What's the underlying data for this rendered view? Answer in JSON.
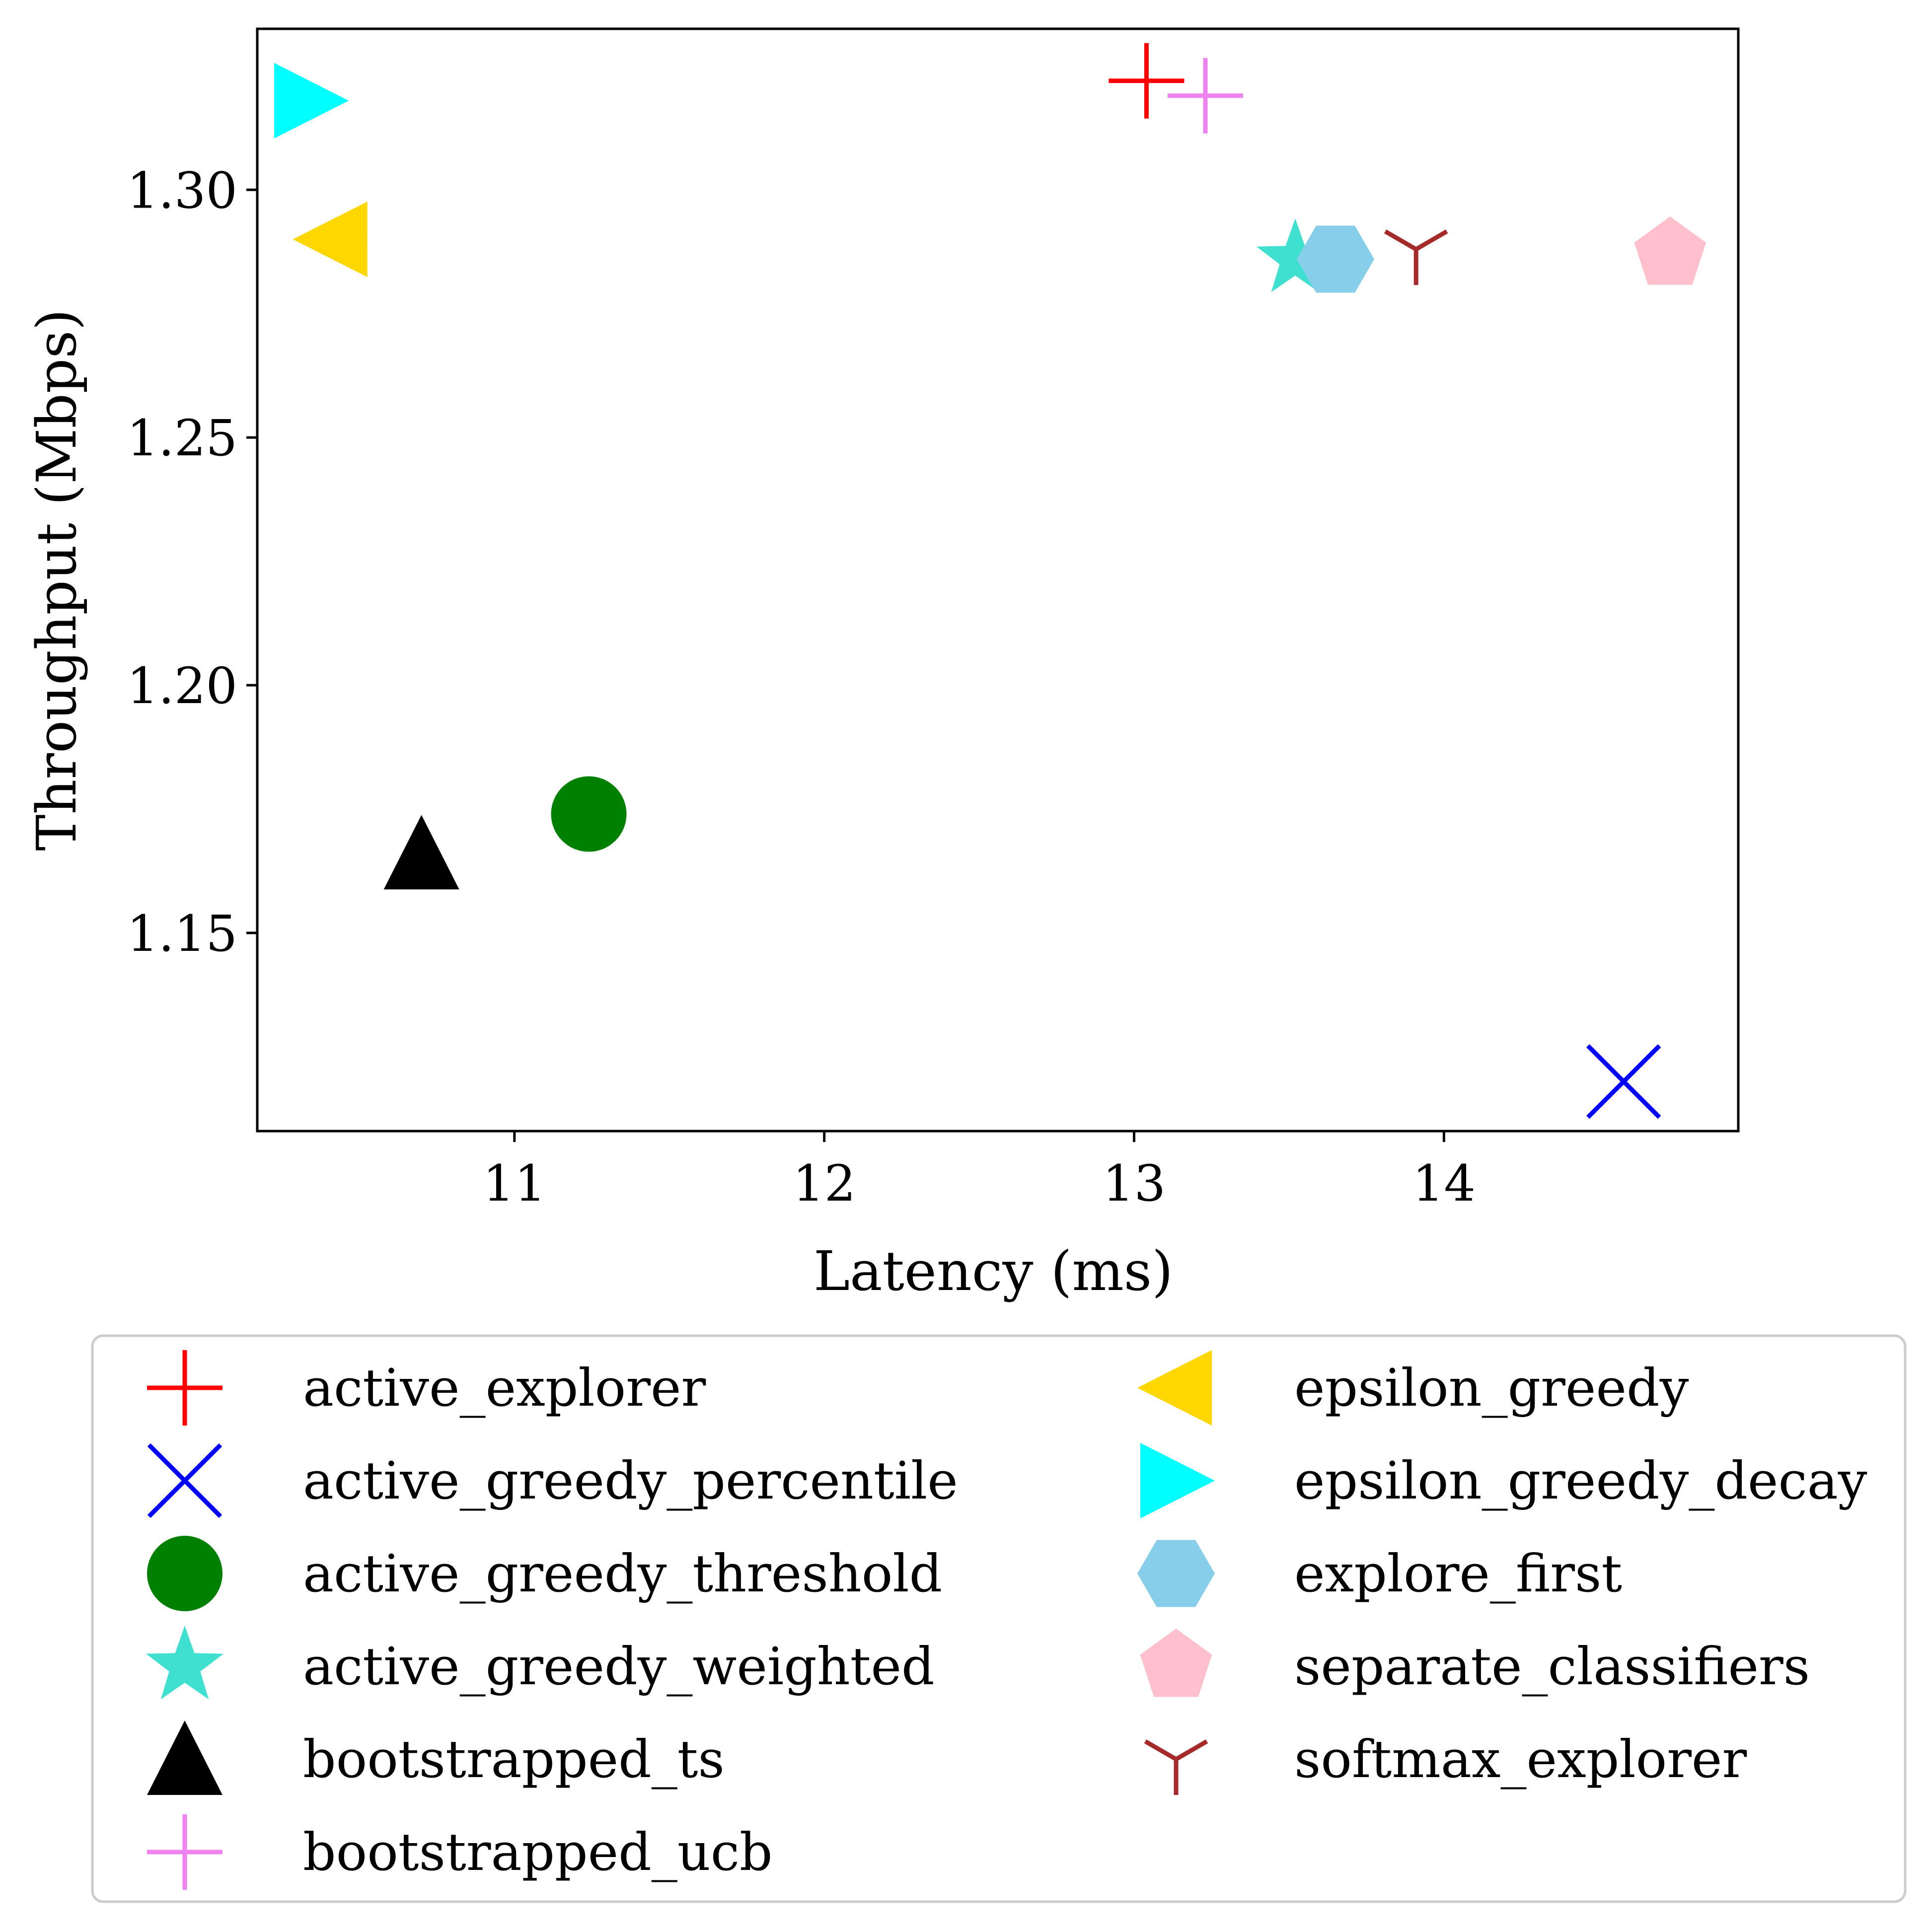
{
  "chart_data": {
    "type": "scatter",
    "title": "",
    "xlabel": "Latency (ms)",
    "ylabel": "Throughput (Mbps)",
    "xlim": [
      10.17,
      14.95
    ],
    "ylim": [
      1.11,
      1.3325
    ],
    "x_ticks": [
      {
        "value": 11,
        "label": "11"
      },
      {
        "value": 12,
        "label": "12"
      },
      {
        "value": 13,
        "label": "13"
      },
      {
        "value": 14,
        "label": "14"
      }
    ],
    "y_ticks": [
      {
        "value": 1.15,
        "label": "1.15"
      },
      {
        "value": 1.2,
        "label": "1.20"
      },
      {
        "value": 1.25,
        "label": "1.25"
      },
      {
        "value": 1.3,
        "label": "1.30"
      }
    ],
    "grid": false,
    "legend_position": "below plot, two columns",
    "series": [
      {
        "name": "active_explorer",
        "marker": "plus",
        "color": "#ff0000",
        "x": 13.04,
        "y": 1.322
      },
      {
        "name": "active_greedy_percentile",
        "marker": "x",
        "color": "#0000ff",
        "x": 14.58,
        "y": 1.12
      },
      {
        "name": "active_greedy_threshold",
        "marker": "circle",
        "color": "#008000",
        "x": 11.24,
        "y": 1.174
      },
      {
        "name": "active_greedy_weighted",
        "marker": "star",
        "color": "#40e0d0",
        "x": 13.52,
        "y": 1.286
      },
      {
        "name": "bootstrapped_ts",
        "marker": "triangle-up",
        "color": "#000000",
        "x": 10.7,
        "y": 1.166
      },
      {
        "name": "bootstrapped_ucb",
        "marker": "plus",
        "color": "#ee82ee",
        "x": 13.23,
        "y": 1.319
      },
      {
        "name": "epsilon_greedy",
        "marker": "triangle-left",
        "color": "#ffd700",
        "x": 10.41,
        "y": 1.29
      },
      {
        "name": "epsilon_greedy_decay",
        "marker": "triangle-right",
        "color": "#00ffff",
        "x": 10.34,
        "y": 1.318
      },
      {
        "name": "explore_first",
        "marker": "hexagon",
        "color": "#87ceeb",
        "x": 13.65,
        "y": 1.286
      },
      {
        "name": "separate_classifiers",
        "marker": "pentagon",
        "color": "#ffc0cb",
        "x": 14.73,
        "y": 1.287
      },
      {
        "name": "softmax_explorer",
        "marker": "tri-down",
        "color": "#a52a2a",
        "x": 13.91,
        "y": 1.288
      }
    ]
  }
}
